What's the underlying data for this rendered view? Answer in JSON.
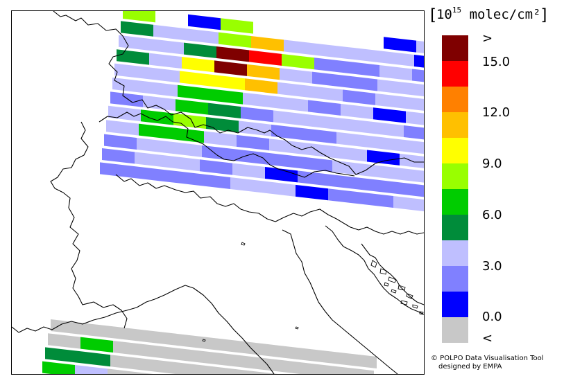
{
  "legend": {
    "title_prefix": "10",
    "title_exponent": "15",
    "title_unit": "molec/cm²",
    "colors": [
      "#7f0000",
      "#ff0000",
      "#ff8000",
      "#ffc000",
      "#ffff00",
      "#99ff00",
      "#00cc00",
      "#008c3a",
      "#bfbfff",
      "#8080ff",
      "#0000ff",
      "#c8c8c8"
    ],
    "tick_labels": [
      ">",
      "15.0",
      "12.0",
      "9.0",
      "6.0",
      "3.0",
      "0.0",
      "<"
    ]
  },
  "credit": {
    "line1": "© POLPO Data Visualisation Tool",
    "line2": "designed by EMPA"
  },
  "swaths": {
    "top": [
      [
        "#99ff00",
        "#ffffff",
        "#0000ff",
        "#99ff00",
        "#ffffff",
        "#ffffff",
        "#ffffff",
        "#ffffff",
        "#0000ff",
        "#bfbfff"
      ],
      [
        "#008c3a",
        "#bfbfff",
        "#bfbfff",
        "#99ff00",
        "#ffc000",
        "#bfbfff",
        "#bfbfff",
        "#bfbfff",
        "#bfbfff",
        "#0000ff",
        "#8080ff"
      ],
      [
        "#bfbfff",
        "#bfbfff",
        "#008c3a",
        "#7f0000",
        "#ff0000",
        "#99ff00",
        "#8080ff",
        "#8080ff",
        "#bfbfff",
        "#8080ff",
        "#0000ff",
        "#bfbfff"
      ],
      [
        "#008c3a",
        "#bfbfff",
        "#ffff00",
        "#7f0000",
        "#ffc000",
        "#bfbfff",
        "#8080ff",
        "#8080ff",
        "#bfbfff",
        "#bfbfff",
        "#8080ff",
        "#bfbfff",
        "#008c3a"
      ],
      [
        "#bfbfff",
        "#bfbfff",
        "#ffff00",
        "#ffff00",
        "#ffc000",
        "#bfbfff",
        "#bfbfff",
        "#8080ff",
        "#bfbfff",
        "#bfbfff",
        "#8080ff",
        "#bfbfff",
        "#bfbfff"
      ],
      [
        "#bfbfff",
        "#bfbfff",
        "#00cc00",
        "#00cc00",
        "#bfbfff",
        "#bfbfff",
        "#8080ff",
        "#bfbfff",
        "#0000ff",
        "#bfbfff",
        "#bfbfff",
        "#bfbfff",
        "#bfbfff"
      ],
      [
        "#8080ff",
        "#bfbfff",
        "#00cc00",
        "#008c3a",
        "#8080ff",
        "#bfbfff",
        "#bfbfff",
        "#bfbfff",
        "#bfbfff",
        "#8080ff",
        "#bfbfff",
        "#bfbfff",
        "#bfbfff"
      ],
      [
        "#bfbfff",
        "#00cc00",
        "#99ff00",
        "#008c3a",
        "#bfbfff",
        "#8080ff",
        "#8080ff",
        "#bfbfff",
        "#bfbfff",
        "#bfbfff",
        "#8080ff",
        "#bfbfff",
        "#bfbfff"
      ],
      [
        "#bfbfff",
        "#00cc00",
        "#00cc00",
        "#bfbfff",
        "#8080ff",
        "#bfbfff",
        "#bfbfff",
        "#bfbfff",
        "#0000ff",
        "#bfbfff",
        "#bfbfff",
        "#bfbfff",
        "#8080ff"
      ],
      [
        "#8080ff",
        "#bfbfff",
        "#bfbfff",
        "#8080ff",
        "#8080ff",
        "#8080ff",
        "#8080ff",
        "#bfbfff",
        "#bfbfff",
        "#bfbfff",
        "#bfbfff",
        "#008c3a",
        "#bfbfff"
      ],
      [
        "#8080ff",
        "#bfbfff",
        "#bfbfff",
        "#8080ff",
        "#bfbfff",
        "#0000ff",
        "#8080ff",
        "#8080ff",
        "#8080ff",
        "#8080ff",
        "#8080ff",
        "#bfbfff",
        "#0000ff"
      ],
      [
        "#8080ff",
        "#8080ff",
        "#8080ff",
        "#8080ff",
        "#bfbfff",
        "#bfbfff",
        "#0000ff",
        "#8080ff",
        "#8080ff",
        "#bfbfff",
        "#bfbfff",
        "#8080ff",
        "#8080ff"
      ]
    ],
    "bottom": [
      [
        "#c8c8c8",
        "#c8c8c8",
        "#c8c8c8",
        "#c8c8c8",
        "#c8c8c8",
        "#c8c8c8",
        "#c8c8c8",
        "#c8c8c8",
        "#c8c8c8",
        "#c8c8c8"
      ],
      [
        "#c8c8c8",
        "#00cc00",
        "#c8c8c8",
        "#c8c8c8",
        "#c8c8c8",
        "#c8c8c8",
        "#c8c8c8",
        "#c8c8c8",
        "#c8c8c8",
        "#c8c8c8"
      ],
      [
        "#008c3a",
        "#008c3a",
        "#c8c8c8",
        "#c8c8c8",
        "#c8c8c8",
        "#c8c8c8",
        "#c8c8c8",
        "#c8c8c8",
        "#c8c8c8",
        "#c8c8c8"
      ],
      [
        "#00cc00",
        "#bfbfff",
        "#c8c8c8",
        "#c8c8c8",
        "#0000ff",
        "#c8c8c8",
        "#c8c8c8",
        "#c8c8c8",
        "#c8c8c8",
        "#c8c8c8"
      ]
    ]
  }
}
